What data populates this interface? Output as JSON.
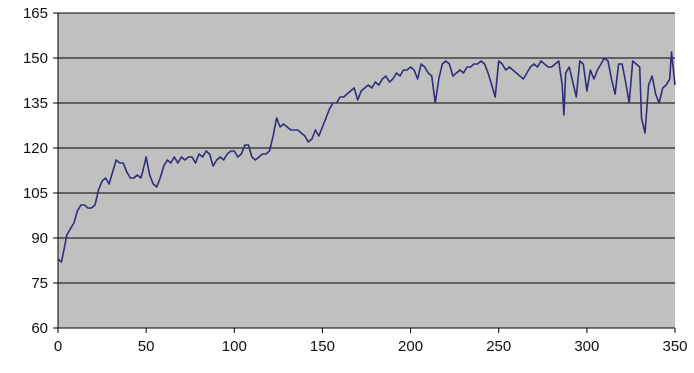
{
  "chart_data": {
    "type": "line",
    "title": "",
    "xlabel": "",
    "ylabel": "",
    "xlim": [
      0,
      350
    ],
    "ylim": [
      60,
      165
    ],
    "xticks": [
      0,
      50,
      100,
      150,
      200,
      250,
      300,
      350
    ],
    "yticks": [
      60,
      75,
      90,
      105,
      120,
      135,
      150,
      165
    ],
    "grid": "horizontal",
    "colors": {
      "plot_background": "#c0c0c0",
      "line": "#2e2e7a",
      "grid": "#000000"
    },
    "series": [
      {
        "x": [
          0,
          2,
          4,
          5,
          7,
          9,
          11,
          13,
          15,
          17,
          19,
          21,
          23,
          25,
          27,
          29,
          31,
          33,
          35,
          37,
          39,
          41,
          43,
          45,
          47,
          48,
          50,
          52,
          54,
          56,
          58,
          60,
          62,
          64,
          66,
          68,
          70,
          72,
          74,
          76,
          78,
          80,
          82,
          84,
          86,
          88,
          90,
          92,
          94,
          96,
          98,
          100,
          102,
          104,
          106,
          108,
          110,
          112,
          114,
          116,
          118,
          120,
          122,
          124,
          126,
          128,
          130,
          132,
          134,
          136,
          138,
          140,
          142,
          144,
          146,
          148,
          150,
          152,
          154,
          156,
          158,
          160,
          162,
          164,
          166,
          168,
          170,
          172,
          174,
          176,
          178,
          180,
          182,
          184,
          186,
          188,
          190,
          192,
          194,
          196,
          198,
          200,
          202,
          204,
          206,
          208,
          210,
          212,
          214,
          216,
          218,
          220,
          222,
          224,
          226,
          228,
          230,
          232,
          234,
          236,
          238,
          240,
          242,
          244,
          246,
          248,
          250,
          252,
          254,
          256,
          258,
          260,
          262,
          264,
          266,
          268,
          270,
          272,
          274,
          276,
          278,
          280,
          282,
          284,
          286,
          287,
          288,
          290,
          292,
          294,
          296,
          298,
          300,
          302,
          304,
          306,
          308,
          310,
          312,
          314,
          316,
          318,
          320,
          322,
          324,
          326,
          328,
          330,
          331,
          333,
          335,
          337,
          339,
          341,
          343,
          345,
          347,
          348,
          350
        ],
        "y": [
          83,
          82,
          88,
          91,
          93,
          95,
          99,
          101,
          101,
          100,
          100,
          101,
          106,
          109,
          110,
          108,
          112,
          116,
          115,
          115,
          112,
          110,
          110,
          111,
          110,
          112,
          117,
          111,
          108,
          107,
          110,
          114,
          116,
          115,
          117,
          115,
          117,
          116,
          117,
          117,
          115,
          118,
          117,
          119,
          118,
          114,
          116,
          117,
          116,
          118,
          119,
          119,
          117,
          118,
          121,
          121,
          117,
          116,
          117,
          118,
          118,
          119,
          124,
          130,
          127,
          128,
          127,
          126,
          126,
          126,
          125,
          124,
          122,
          123,
          126,
          124,
          127,
          130,
          133,
          135,
          135,
          137,
          137,
          138,
          139,
          140,
          136,
          139,
          140,
          141,
          140,
          142,
          141,
          143,
          144,
          142,
          143,
          145,
          144,
          146,
          146,
          147,
          146,
          143,
          148,
          147,
          145,
          144,
          135,
          143,
          148,
          149,
          148,
          144,
          145,
          146,
          145,
          147,
          147,
          148,
          148,
          149,
          148,
          145,
          141,
          137,
          149,
          148,
          146,
          147,
          146,
          145,
          144,
          143,
          145,
          147,
          148,
          147,
          149,
          148,
          147,
          147,
          148,
          149,
          141,
          131,
          145,
          147,
          142,
          137,
          149,
          148,
          139,
          146,
          143,
          146,
          148,
          150,
          149,
          143,
          138,
          148,
          148,
          142,
          135,
          149,
          148,
          147,
          130,
          125,
          141,
          144,
          138,
          135,
          140,
          141,
          143,
          152,
          141
        ]
      }
    ]
  }
}
